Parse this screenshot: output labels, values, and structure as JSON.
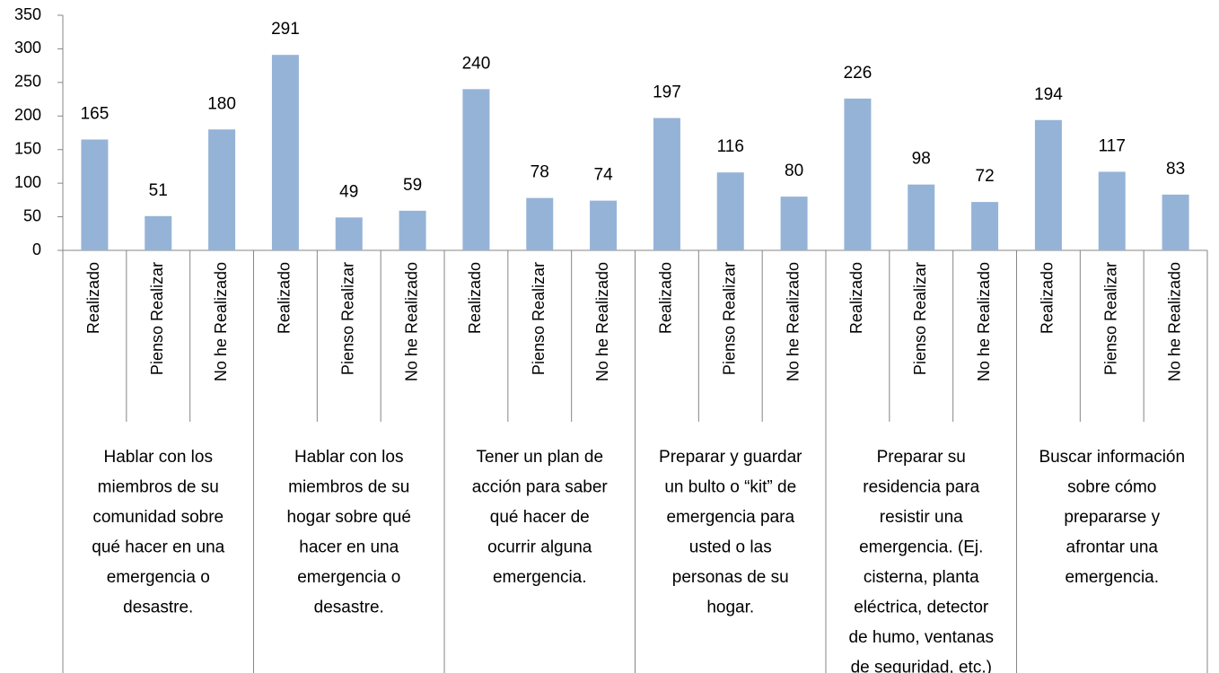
{
  "chart_data": {
    "type": "bar",
    "color": "#95b3d7",
    "categories": [
      "Realizado",
      "Pienso Realizar",
      "No he Realizado",
      "Realizado",
      "Pienso Realizar",
      "No he Realizado",
      "Realizado",
      "Pienso Realizar",
      "No he Realizado",
      "Realizado",
      "Pienso Realizar",
      "No he Realizado",
      "Realizado",
      "Pienso Realizar",
      "No he Realizado",
      "Realizado",
      "Pienso Realizar",
      "No he Realizado"
    ],
    "groups": [
      [
        "Hablar con los",
        "miembros de su",
        "comunidad sobre",
        "qué hacer en una",
        "emergencia o",
        "desastre."
      ],
      [
        "Hablar con los",
        "miembros de su",
        "hogar sobre qué",
        "hacer en una",
        "emergencia o",
        "desastre."
      ],
      [
        "Tener un plan de",
        "acción para saber",
        "qué hacer de",
        "ocurrir alguna",
        "emergencia."
      ],
      [
        "Preparar y guardar",
        "un bulto o “kit” de",
        "emergencia para",
        "usted o las",
        "personas de su",
        "hogar."
      ],
      [
        "Preparar su",
        "residencia para",
        "resistir una",
        "emergencia. (Ej.",
        "cisterna, planta",
        "eléctrica, detector",
        "de humo, ventanas",
        "de seguridad, etc.)"
      ],
      [
        "Buscar información",
        "sobre cómo",
        "prepararse y",
        "afrontar una",
        "emergencia."
      ]
    ],
    "values": [
      165,
      51,
      180,
      291,
      49,
      59,
      240,
      78,
      74,
      197,
      116,
      80,
      226,
      98,
      72,
      194,
      117,
      83
    ],
    "ylim": [
      0,
      350
    ],
    "yticks": [
      0,
      50,
      100,
      150,
      200,
      250,
      300,
      350
    ]
  }
}
